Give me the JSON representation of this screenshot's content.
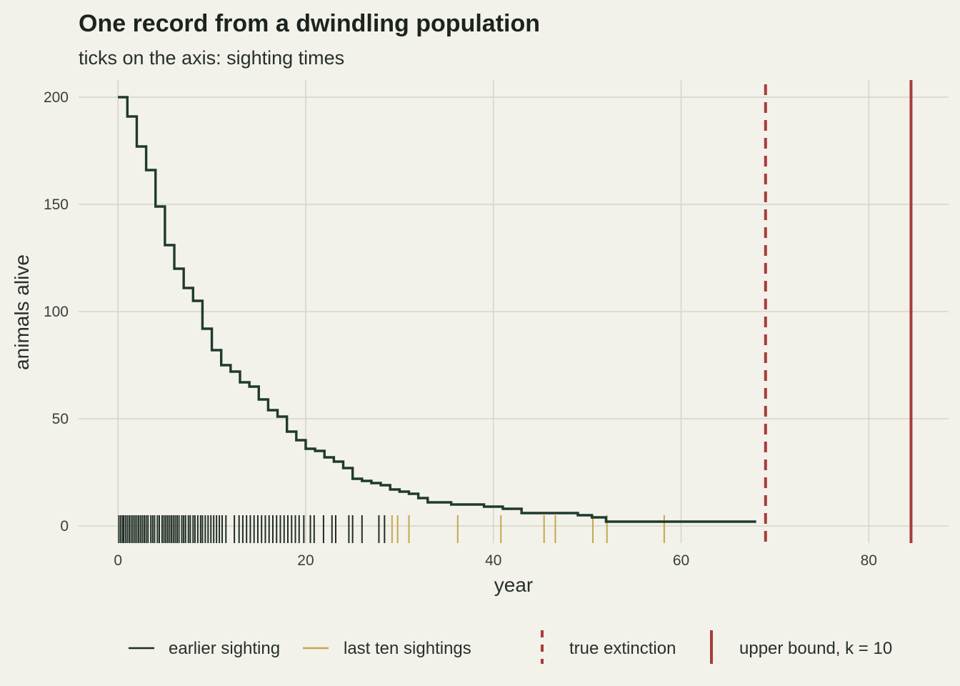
{
  "colors": {
    "background": "#f2f1ea",
    "grid": "#d7d6c8",
    "population": "#1f3a2d",
    "earlier_sighting": "#1f2e26",
    "last_ten": "#c4a84e",
    "extinction": "#a63d3a"
  },
  "chart_data": {
    "type": "line",
    "step": true,
    "title": "One record from a dwindling population",
    "subtitle": "ticks on the axis: sighting times",
    "xlabel": "year",
    "ylabel": "animals alive",
    "xlim": [
      -4.2,
      88.5
    ],
    "ylim": [
      -8,
      208
    ],
    "xticks": [
      0,
      20,
      40,
      60,
      80
    ],
    "yticks": [
      0,
      50,
      100,
      150,
      200
    ],
    "grid": true,
    "legend_position": "bottom",
    "series": [
      {
        "x": [
          0,
          1.0,
          2.0,
          3.0,
          4.0,
          5.0,
          6.0,
          7.0,
          8.0,
          9.0,
          10.0,
          11.0,
          12.0,
          13.0,
          14.0,
          15.0,
          16.0,
          17.0,
          18.0,
          19.0,
          20.0,
          21.0,
          22.0,
          23.0,
          24.0,
          25.0,
          26.0,
          27.0,
          28.0,
          29.0,
          30.0,
          31.0,
          32.0,
          33.0,
          35.5,
          39.0,
          41.0,
          43.0,
          48.0,
          49.0,
          50.5,
          52.0,
          68.0
        ],
        "y": [
          200,
          191,
          177,
          166,
          149,
          131,
          120,
          111,
          105,
          92,
          82,
          75,
          72,
          67,
          65,
          59,
          54,
          51,
          44,
          40,
          36,
          35,
          32,
          30,
          27,
          22,
          21,
          20,
          19,
          17,
          16,
          15,
          13,
          11,
          10,
          9,
          8,
          6,
          6,
          5,
          4,
          2,
          2
        ]
      }
    ],
    "earlier_sightings": [
      0.1,
      0.3,
      0.5,
      0.6,
      0.8,
      1.0,
      1.2,
      1.4,
      1.6,
      1.8,
      2.0,
      2.2,
      2.4,
      2.6,
      2.8,
      3.0,
      3.2,
      3.5,
      3.7,
      3.9,
      4.2,
      4.4,
      4.7,
      4.9,
      5.1,
      5.3,
      5.5,
      5.7,
      5.9,
      6.1,
      6.3,
      6.5,
      6.8,
      7.0,
      7.2,
      7.5,
      7.7,
      8.0,
      8.2,
      8.5,
      8.8,
      9.0,
      9.3,
      9.6,
      9.9,
      10.2,
      10.5,
      10.8,
      11.1,
      11.5,
      12.4,
      12.9,
      13.3,
      13.7,
      14.1,
      14.5,
      14.9,
      15.3,
      15.7,
      16.1,
      16.5,
      16.9,
      17.3,
      17.7,
      18.1,
      18.5,
      18.9,
      19.3,
      19.8,
      20.5,
      20.9,
      21.9,
      22.8,
      23.2,
      24.6,
      25.0,
      26.0,
      27.8,
      28.4
    ],
    "last_ten_sightings": [
      29.2,
      29.8,
      31.0,
      36.2,
      40.8,
      45.4,
      46.6,
      50.6,
      52.1,
      58.2
    ],
    "true_extinction": 69.0,
    "upper_bound": 84.5,
    "legend": [
      {
        "label": "earlier sighting",
        "style": "earlier"
      },
      {
        "label": "last ten sightings",
        "style": "last"
      },
      {
        "label": "true extinction",
        "style": "dashed"
      },
      {
        "label": "upper bound, k = 10",
        "style": "solid"
      }
    ]
  }
}
